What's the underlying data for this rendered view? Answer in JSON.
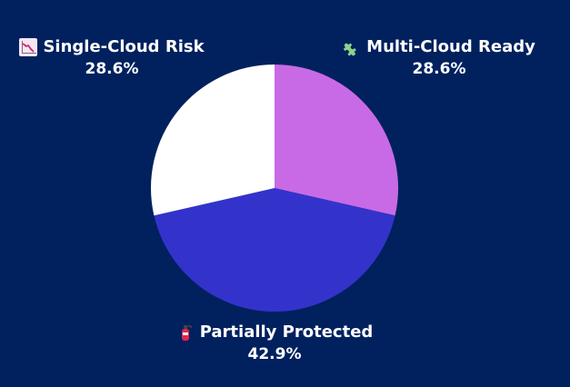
{
  "chart_data": {
    "type": "pie",
    "slices": [
      {
        "label": "Multi-Cloud Ready",
        "value": 28.6,
        "value_label": "28.6%",
        "color": "#c86ae6",
        "icon": "puzzle-piece-icon"
      },
      {
        "label": "Partially Protected",
        "value": 42.9,
        "value_label": "42.9%",
        "color": "#3333cc",
        "icon": "fire-extinguisher-icon"
      },
      {
        "label": "Single-Cloud Risk",
        "value": 28.6,
        "value_label": "28.6%",
        "color": "#ffffff",
        "icon": "chart-decreasing-icon"
      }
    ],
    "start_angle_deg": 0,
    "direction": "clockwise"
  },
  "colors": {
    "background": "#00215e",
    "text": "#ffffff"
  }
}
